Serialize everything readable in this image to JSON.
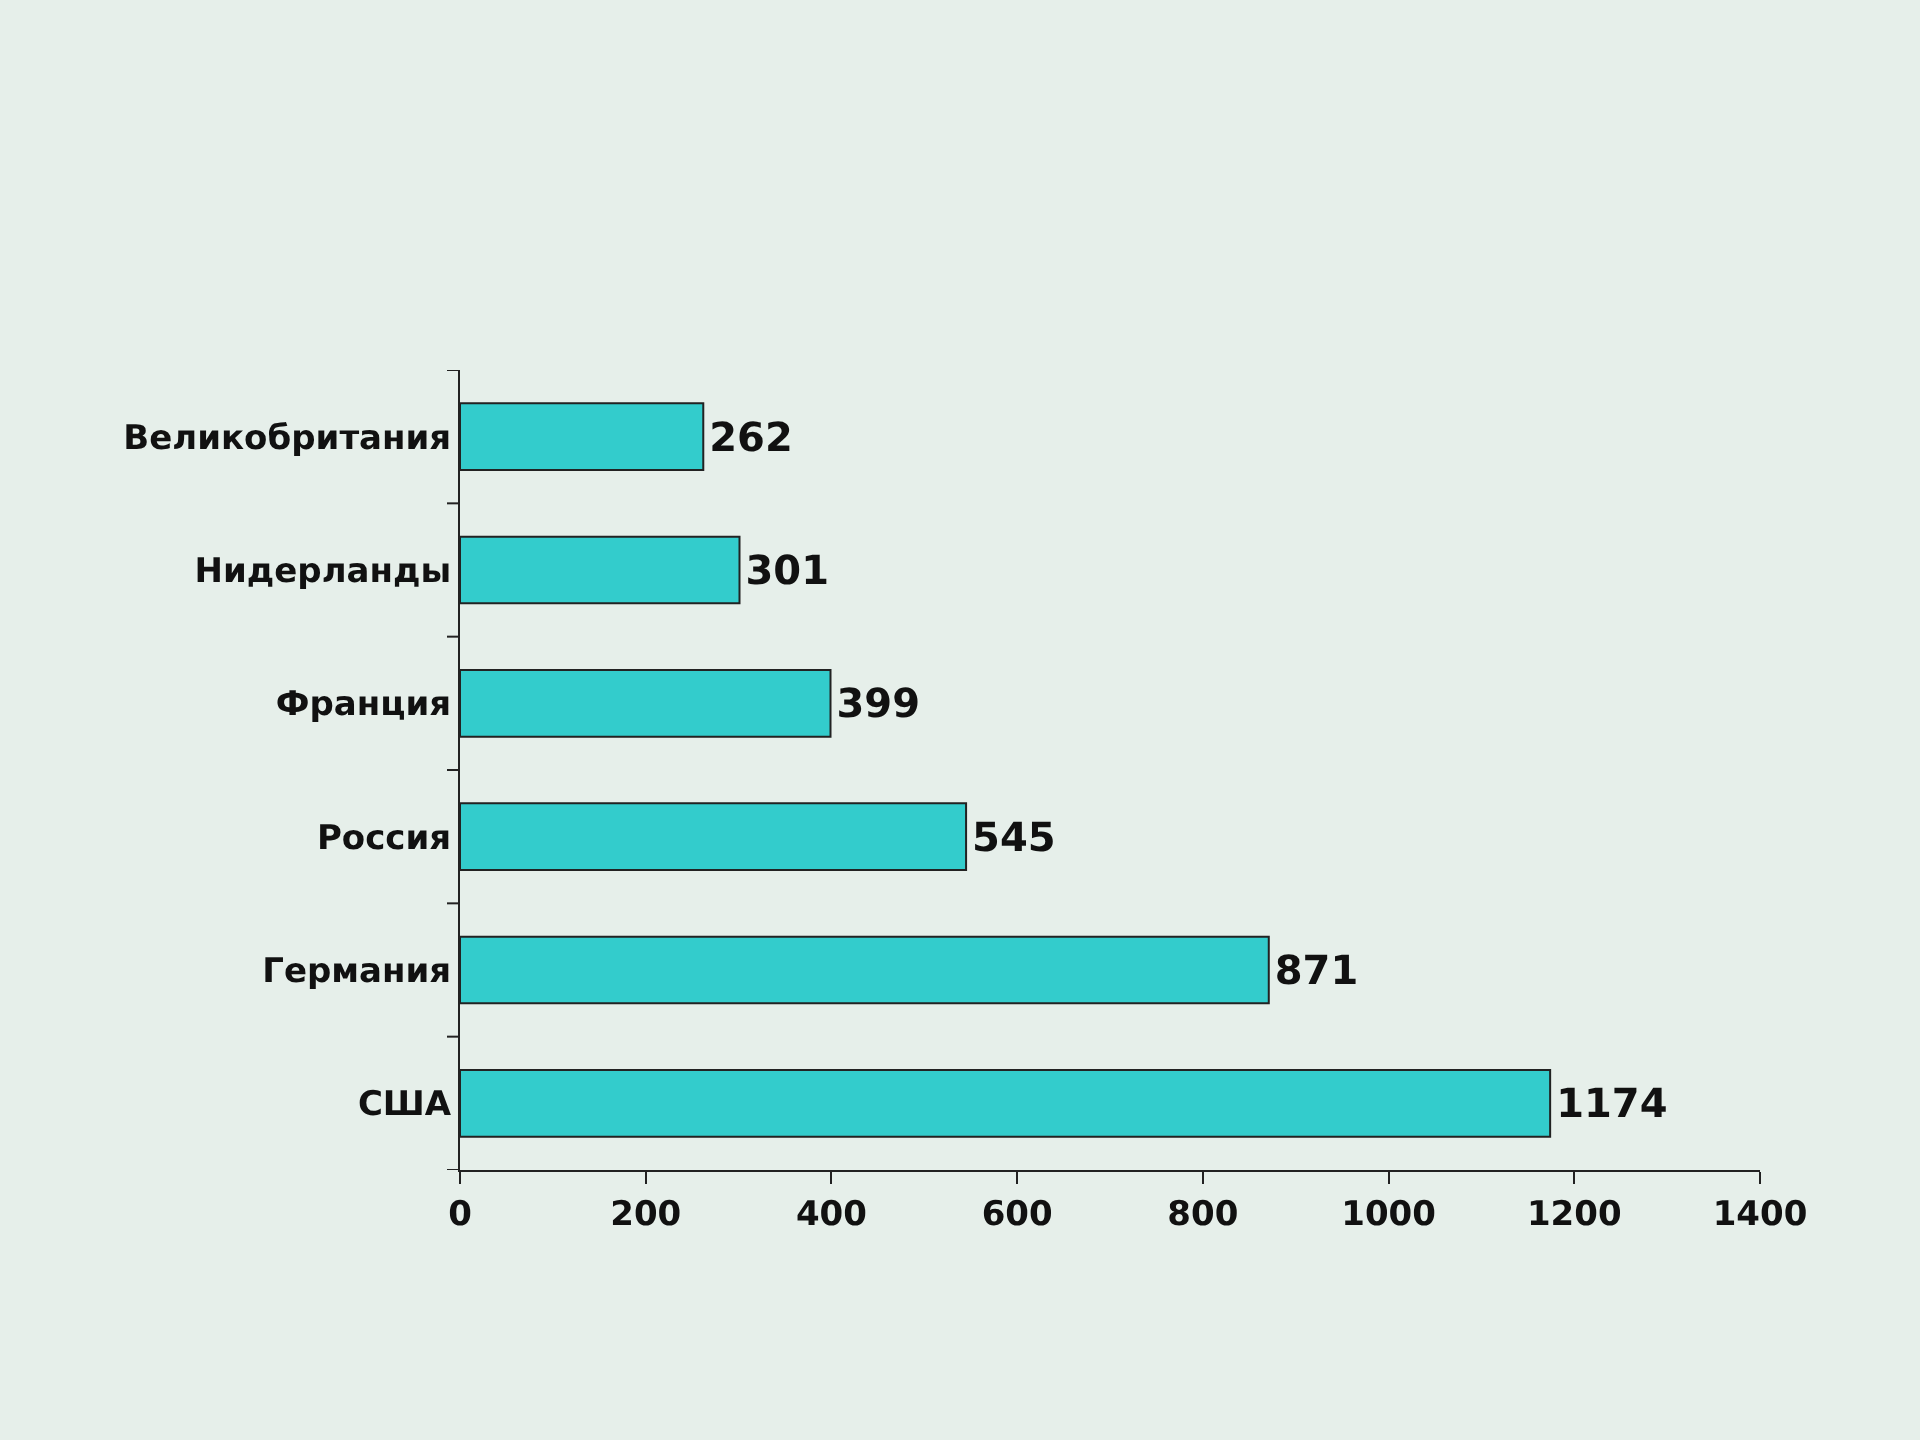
{
  "chart_data": {
    "type": "bar",
    "orientation": "horizontal",
    "categories": [
      "Великобритания",
      "Нидерланды",
      "Франция",
      "Россия",
      "Германия",
      "США"
    ],
    "values": [
      262,
      301,
      399,
      545,
      871,
      1174
    ],
    "color": "#33cccc",
    "xlim": [
      0,
      1400
    ],
    "xticks": [
      0,
      200,
      400,
      600,
      800,
      1000,
      1200,
      1400
    ],
    "data_labels": true,
    "grid": false
  }
}
